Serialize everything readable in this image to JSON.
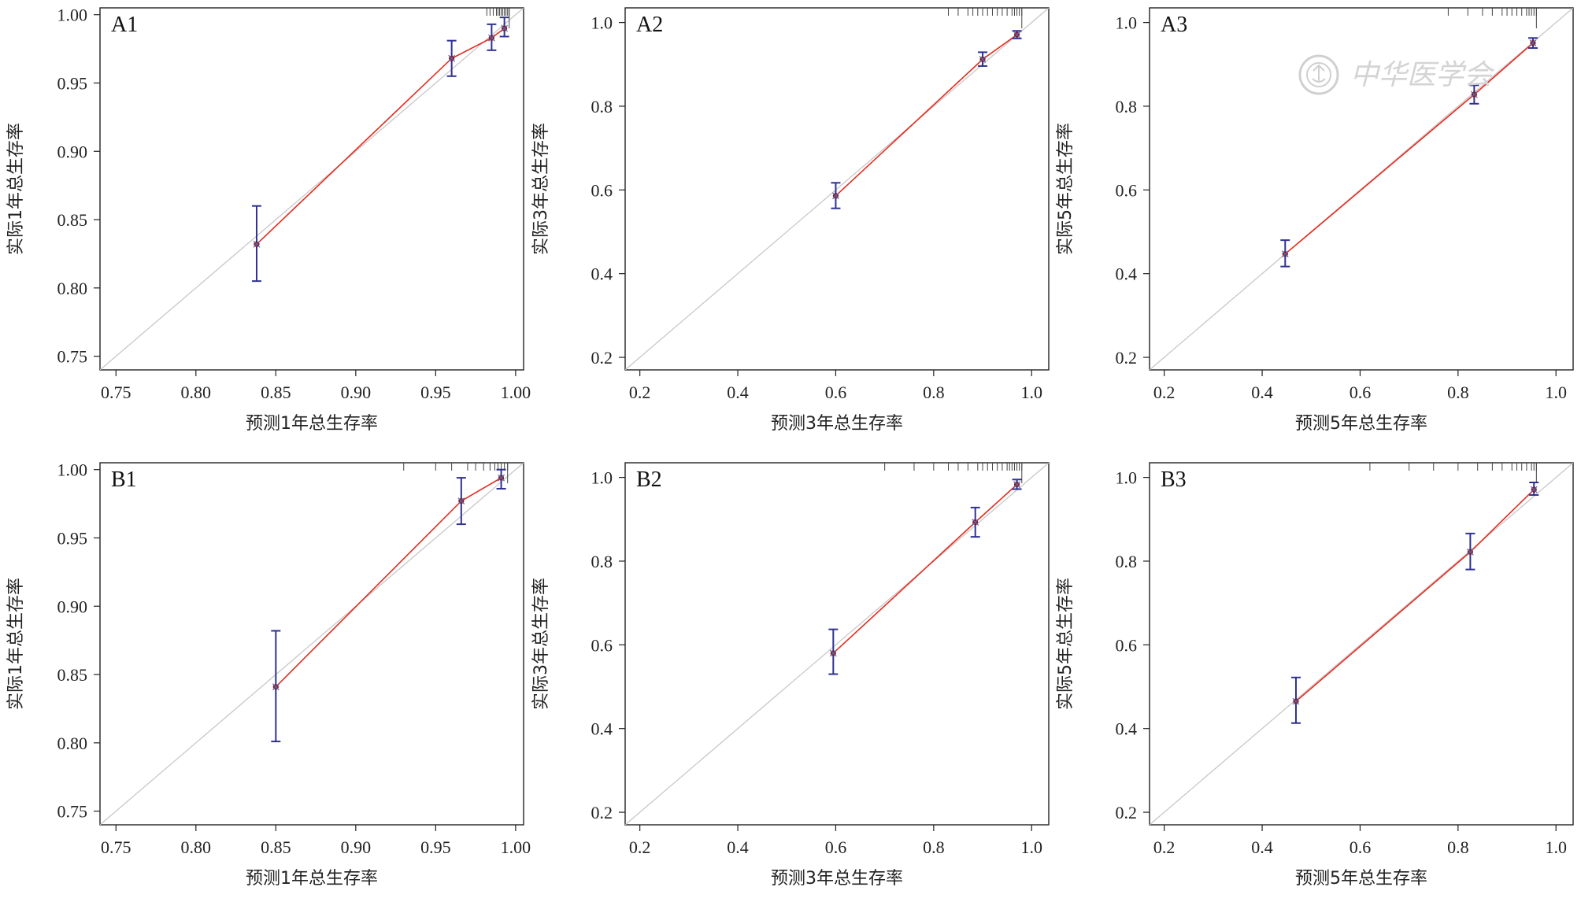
{
  "watermark": {
    "text": "中华医学会",
    "icon": "society-seal-icon"
  },
  "colors": {
    "identity_line": "#c8c8c8",
    "fit_line": "#e8291c",
    "error_bar": "#2e3192",
    "point": "#8b1a2a",
    "frame": "#222222"
  },
  "chart_data": [
    {
      "type": "line",
      "panel": "A1",
      "xlabel": "预测1年总生存率",
      "ylabel": "实际1年总生存率",
      "xlim": [
        0.74,
        1.005
      ],
      "ylim": [
        0.74,
        1.005
      ],
      "xticks": [
        0.75,
        0.8,
        0.85,
        0.9,
        0.95,
        1.0
      ],
      "yticks": [
        0.75,
        0.8,
        0.85,
        0.9,
        0.95,
        1.0
      ],
      "tick_labels_x": [
        "0.75",
        "0.80",
        "0.85",
        "0.90",
        "0.95",
        "1.00"
      ],
      "tick_labels_y": [
        "0.75",
        "0.80",
        "0.85",
        "0.90",
        "0.95",
        "1.00"
      ],
      "points": [
        {
          "x": 0.838,
          "y": 0.832,
          "lo": 0.805,
          "hi": 0.86
        },
        {
          "x": 0.96,
          "y": 0.968,
          "lo": 0.955,
          "hi": 0.981
        },
        {
          "x": 0.985,
          "y": 0.983,
          "lo": 0.974,
          "hi": 0.993
        },
        {
          "x": 0.993,
          "y": 0.99,
          "lo": 0.984,
          "hi": 0.998
        }
      ],
      "rug": [
        0.982,
        0.984,
        0.986,
        0.988,
        0.989,
        0.99,
        0.991,
        0.992,
        0.993,
        0.994,
        0.995,
        0.996
      ],
      "grid": false
    },
    {
      "type": "line",
      "panel": "A2",
      "xlabel": "预测3年总生存率",
      "ylabel": "实际3年总生存率",
      "xlim": [
        0.17,
        1.035
      ],
      "ylim": [
        0.17,
        1.035
      ],
      "xticks": [
        0.2,
        0.4,
        0.6,
        0.8,
        1.0
      ],
      "yticks": [
        0.2,
        0.4,
        0.6,
        0.8,
        1.0
      ],
      "tick_labels_x": [
        "0.2",
        "0.4",
        "0.6",
        "0.8",
        "1.0"
      ],
      "tick_labels_y": [
        "0.2",
        "0.4",
        "0.6",
        "0.8",
        "1.0"
      ],
      "points": [
        {
          "x": 0.6,
          "y": 0.586,
          "lo": 0.556,
          "hi": 0.617
        },
        {
          "x": 0.9,
          "y": 0.912,
          "lo": 0.896,
          "hi": 0.929
        },
        {
          "x": 0.97,
          "y": 0.971,
          "lo": 0.962,
          "hi": 0.98
        }
      ],
      "rug": [
        0.83,
        0.85,
        0.87,
        0.88,
        0.89,
        0.9,
        0.91,
        0.92,
        0.93,
        0.94,
        0.95,
        0.96,
        0.965,
        0.97,
        0.975,
        0.98
      ],
      "grid": false
    },
    {
      "type": "line",
      "panel": "A3",
      "xlabel": "预测5年总生存率",
      "ylabel": "实际5年总生存率",
      "xlim": [
        0.17,
        1.035
      ],
      "ylim": [
        0.17,
        1.035
      ],
      "xticks": [
        0.2,
        0.4,
        0.6,
        0.8,
        1.0
      ],
      "yticks": [
        0.2,
        0.4,
        0.6,
        0.8,
        1.0
      ],
      "tick_labels_x": [
        "0.2",
        "0.4",
        "0.6",
        "0.8",
        "1.0"
      ],
      "tick_labels_y": [
        "0.2",
        "0.4",
        "0.6",
        "0.8",
        "1.0"
      ],
      "points": [
        {
          "x": 0.447,
          "y": 0.447,
          "lo": 0.417,
          "hi": 0.48
        },
        {
          "x": 0.833,
          "y": 0.828,
          "lo": 0.806,
          "hi": 0.85
        },
        {
          "x": 0.953,
          "y": 0.951,
          "lo": 0.939,
          "hi": 0.963
        }
      ],
      "rug": [
        0.78,
        0.82,
        0.85,
        0.87,
        0.89,
        0.9,
        0.91,
        0.92,
        0.93,
        0.94,
        0.945,
        0.95,
        0.955,
        0.96
      ],
      "grid": false
    },
    {
      "type": "line",
      "panel": "B1",
      "xlabel": "预测1年总生存率",
      "ylabel": "实际1年总生存率",
      "xlim": [
        0.74,
        1.005
      ],
      "ylim": [
        0.74,
        1.005
      ],
      "xticks": [
        0.75,
        0.8,
        0.85,
        0.9,
        0.95,
        1.0
      ],
      "yticks": [
        0.75,
        0.8,
        0.85,
        0.9,
        0.95,
        1.0
      ],
      "tick_labels_x": [
        "0.75",
        "0.80",
        "0.85",
        "0.90",
        "0.95",
        "1.00"
      ],
      "tick_labels_y": [
        "0.75",
        "0.80",
        "0.85",
        "0.90",
        "0.95",
        "1.00"
      ],
      "points": [
        {
          "x": 0.85,
          "y": 0.841,
          "lo": 0.801,
          "hi": 0.882
        },
        {
          "x": 0.966,
          "y": 0.977,
          "lo": 0.96,
          "hi": 0.994
        },
        {
          "x": 0.991,
          "y": 0.994,
          "lo": 0.986,
          "hi": 1.0
        }
      ],
      "rug": [
        0.93,
        0.95,
        0.96,
        0.97,
        0.975,
        0.98,
        0.984,
        0.987,
        0.989,
        0.991,
        0.993,
        0.995
      ],
      "grid": false
    },
    {
      "type": "line",
      "panel": "B2",
      "xlabel": "预测3年总生存率",
      "ylabel": "实际3年总生存率",
      "xlim": [
        0.17,
        1.035
      ],
      "ylim": [
        0.17,
        1.035
      ],
      "xticks": [
        0.2,
        0.4,
        0.6,
        0.8,
        1.0
      ],
      "yticks": [
        0.2,
        0.4,
        0.6,
        0.8,
        1.0
      ],
      "tick_labels_x": [
        "0.2",
        "0.4",
        "0.6",
        "0.8",
        "1.0"
      ],
      "tick_labels_y": [
        "0.2",
        "0.4",
        "0.6",
        "0.8",
        "1.0"
      ],
      "points": [
        {
          "x": 0.595,
          "y": 0.58,
          "lo": 0.53,
          "hi": 0.637
        },
        {
          "x": 0.885,
          "y": 0.893,
          "lo": 0.858,
          "hi": 0.928
        },
        {
          "x": 0.97,
          "y": 0.983,
          "lo": 0.972,
          "hi": 0.995
        }
      ],
      "rug": [
        0.7,
        0.76,
        0.8,
        0.83,
        0.85,
        0.87,
        0.89,
        0.9,
        0.91,
        0.92,
        0.93,
        0.94,
        0.95,
        0.955,
        0.96,
        0.965,
        0.97,
        0.975,
        0.98
      ],
      "grid": false
    },
    {
      "type": "line",
      "panel": "B3",
      "xlabel": "预测5年总生存率",
      "ylabel": "实际5年总生存率",
      "xlim": [
        0.17,
        1.035
      ],
      "ylim": [
        0.17,
        1.035
      ],
      "xticks": [
        0.2,
        0.4,
        0.6,
        0.8,
        1.0
      ],
      "yticks": [
        0.2,
        0.4,
        0.6,
        0.8,
        1.0
      ],
      "tick_labels_x": [
        "0.2",
        "0.4",
        "0.6",
        "0.8",
        "1.0"
      ],
      "tick_labels_y": [
        "0.2",
        "0.4",
        "0.6",
        "0.8",
        "1.0"
      ],
      "points": [
        {
          "x": 0.469,
          "y": 0.465,
          "lo": 0.413,
          "hi": 0.522
        },
        {
          "x": 0.825,
          "y": 0.822,
          "lo": 0.78,
          "hi": 0.866
        },
        {
          "x": 0.955,
          "y": 0.971,
          "lo": 0.958,
          "hi": 0.988
        }
      ],
      "rug": [
        0.62,
        0.7,
        0.75,
        0.8,
        0.84,
        0.87,
        0.89,
        0.91,
        0.92,
        0.93,
        0.94,
        0.95,
        0.955,
        0.96
      ],
      "grid": false
    }
  ]
}
